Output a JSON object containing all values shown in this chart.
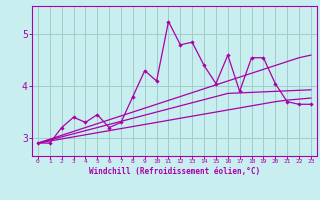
{
  "xlabel": "Windchill (Refroidissement éolien,°C)",
  "bg_color": "#c8eef0",
  "grid_color": "#a0ccc8",
  "line_color": "#aa00aa",
  "x": [
    0,
    1,
    2,
    3,
    4,
    5,
    6,
    7,
    8,
    9,
    10,
    11,
    12,
    13,
    14,
    15,
    16,
    17,
    18,
    19,
    20,
    21,
    22,
    23
  ],
  "y_main": [
    2.9,
    2.9,
    3.2,
    3.4,
    3.3,
    3.45,
    3.2,
    3.3,
    3.8,
    4.3,
    4.1,
    5.25,
    4.8,
    4.85,
    4.4,
    4.05,
    4.6,
    3.9,
    4.55,
    4.55,
    4.05,
    3.7,
    3.65,
    3.65
  ],
  "y_linear1": [
    2.9,
    2.975,
    3.05,
    3.125,
    3.2,
    3.275,
    3.35,
    3.425,
    3.5,
    3.575,
    3.65,
    3.725,
    3.8,
    3.875,
    3.95,
    4.025,
    4.1,
    4.175,
    4.25,
    4.325,
    4.4,
    4.475,
    4.55,
    4.6
  ],
  "y_linear2": [
    2.9,
    2.96,
    3.02,
    3.08,
    3.14,
    3.2,
    3.26,
    3.32,
    3.38,
    3.44,
    3.5,
    3.56,
    3.62,
    3.68,
    3.74,
    3.8,
    3.86,
    3.87,
    3.88,
    3.89,
    3.9,
    3.91,
    3.92,
    3.93
  ],
  "y_linear3": [
    2.9,
    2.94,
    2.98,
    3.02,
    3.06,
    3.1,
    3.14,
    3.18,
    3.22,
    3.26,
    3.3,
    3.34,
    3.38,
    3.42,
    3.46,
    3.5,
    3.54,
    3.58,
    3.62,
    3.66,
    3.7,
    3.73,
    3.75,
    3.77
  ],
  "yticks": [
    3,
    4,
    5
  ],
  "ylim": [
    2.65,
    5.55
  ],
  "xlim": [
    -0.5,
    23.5
  ]
}
